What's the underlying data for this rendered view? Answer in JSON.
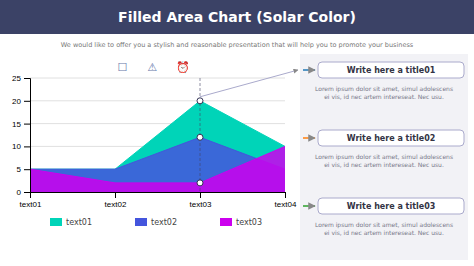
{
  "chart_data": {
    "type": "area",
    "title": "Filled Area Chart (Solar Color)",
    "subtitle": "We would like to offer you a stylish and reasonable presentation that will help you to promote your business",
    "categories": [
      "text01",
      "text02",
      "text03",
      "text04"
    ],
    "series": [
      {
        "name": "text01",
        "color": "#00d4b8",
        "values": [
          5,
          5,
          20,
          10
        ]
      },
      {
        "name": "text02",
        "color": "#4455dd",
        "values": [
          5,
          5,
          12,
          5
        ]
      },
      {
        "name": "text03",
        "color": "#cc00ee",
        "values": [
          5,
          2,
          2,
          10
        ]
      }
    ],
    "ylim": [
      0,
      25
    ],
    "yticks": [
      0,
      5,
      10,
      15,
      20,
      25
    ],
    "grid": true,
    "legend": "bottom",
    "marker": "circle",
    "icons": [
      "☐",
      "⚠",
      "⏰"
    ],
    "annotations": [
      {
        "title": "Write here a title01",
        "text": "Lorem ipsum dolor sit amet, simul adolescens\nei vis, id nec artem intereseat. Nec usu."
      },
      {
        "title": "Write here a title02",
        "text": "Lorem ipsum dolor sit amet, simul adolescens\nei vis, id nec artem intereseat. Nec usu."
      },
      {
        "title": "Write here a title03",
        "text": "Lorem ipsum dolor sit amet, simul adolescens\nei vis, id nec artem intereseat. Nec usu."
      }
    ]
  }
}
